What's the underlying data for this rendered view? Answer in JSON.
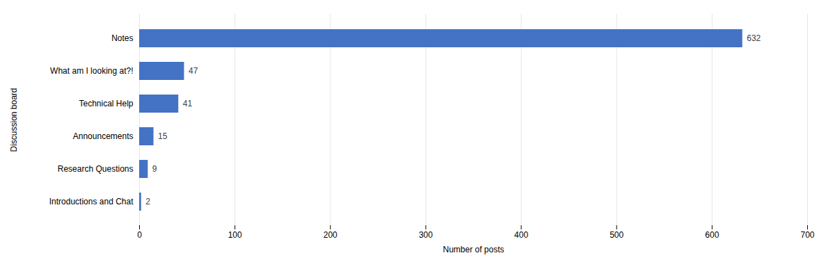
{
  "chart_data": {
    "type": "bar",
    "orientation": "horizontal",
    "categories": [
      "Introductions and Chat",
      "Research Questions",
      "Announcements",
      "Technical Help",
      "What am I looking at?!",
      "Notes"
    ],
    "values": [
      2,
      9,
      15,
      41,
      47,
      632
    ],
    "color": "#4472C4",
    "xlabel": "Number of posts",
    "ylabel": "Discussion board",
    "xlim": [
      0,
      700
    ],
    "xticks": [
      0,
      100,
      200,
      300,
      400,
      500,
      600,
      700
    ],
    "grid": true,
    "data_labels": true
  }
}
